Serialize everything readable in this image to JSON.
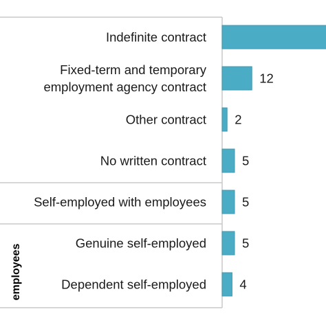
{
  "chart_data": {
    "type": "bar",
    "orientation": "horizontal",
    "categories": [
      {
        "lines": [
          "Indefinite contract"
        ]
      },
      {
        "lines": [
          "Fixed-term and temporary",
          "employment agency contract"
        ]
      },
      {
        "lines": [
          "Other contract"
        ]
      },
      {
        "lines": [
          "No written contract"
        ]
      },
      {
        "lines": [
          "Self-employed with employees"
        ]
      },
      {
        "lines": [
          "Genuine self-employed"
        ]
      },
      {
        "lines": [
          "Dependent self-employed"
        ]
      }
    ],
    "values": [
      null,
      12,
      2,
      5,
      5,
      5,
      4
    ],
    "data_labels": [
      "",
      "12",
      "2",
      "5",
      "5",
      "5",
      "4"
    ],
    "group_labels": [
      "employees"
    ],
    "bar_color": "#4bacc6",
    "bar_edge_color": "#3f97ae",
    "first_bar_truncated": true
  }
}
